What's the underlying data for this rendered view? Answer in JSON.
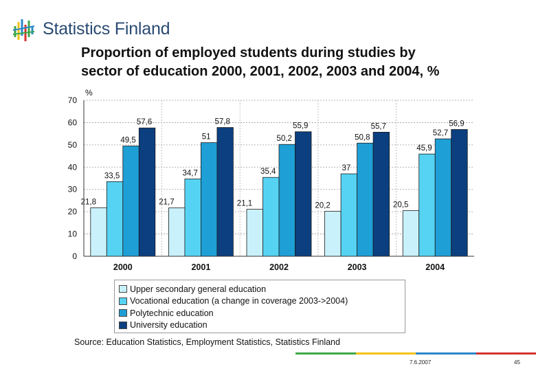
{
  "header": {
    "brand": "Statistics Finland",
    "title_line1": "Proportion of employed students during studies by",
    "title_line2": "sector of education 2000, 2001, 2002, 2003 and 2004, %"
  },
  "chart_data": {
    "type": "bar",
    "ylabel": "%",
    "ylim": [
      0,
      70
    ],
    "yticks": [
      0,
      10,
      20,
      30,
      40,
      50,
      60,
      70
    ],
    "categories": [
      "2000",
      "2001",
      "2002",
      "2003",
      "2004"
    ],
    "series": [
      {
        "name": "Upper secondary general education",
        "color": "#c9f1fb",
        "values": [
          21.8,
          21.7,
          21.1,
          20.2,
          20.5
        ],
        "labels": [
          "21,8",
          "21,7",
          "21,1",
          "20,2",
          "20,5"
        ]
      },
      {
        "name": "Vocational education (a change in coverage 2003->2004)",
        "color": "#56d3f3",
        "values": [
          33.5,
          34.7,
          35.4,
          37,
          45.9
        ],
        "labels": [
          "33,5",
          "34,7",
          "35,4",
          "37",
          "45,9"
        ]
      },
      {
        "name": "Polytechnic education",
        "color": "#1e9fd6",
        "values": [
          49.5,
          51,
          50.2,
          50.8,
          52.7
        ],
        "labels": [
          "49,5",
          "51",
          "50,2",
          "50,8",
          "52,7"
        ]
      },
      {
        "name": "University education",
        "color": "#0b3f7f",
        "values": [
          57.6,
          57.8,
          55.9,
          55.7,
          56.9
        ],
        "labels": [
          "57,6",
          "57,8",
          "55,9",
          "55,7",
          "56,9"
        ]
      }
    ],
    "grid": true,
    "legend_position": "bottom"
  },
  "source": "Source: Education Statistics, Employment Statistics, Statistics Finland",
  "footer": {
    "date": "7.6.2007",
    "page": "45",
    "bar_colors": [
      "#3da848",
      "#f2c318",
      "#2a88c9",
      "#d6312e"
    ]
  }
}
